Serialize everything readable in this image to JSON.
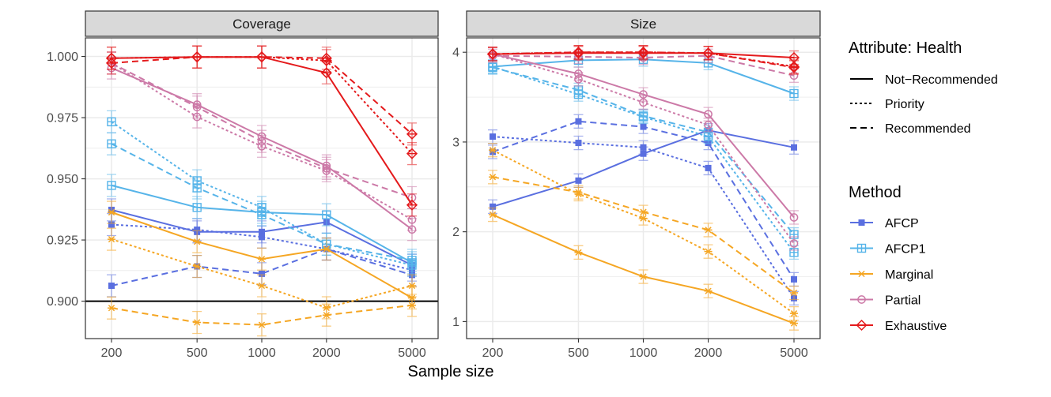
{
  "chart_data": {
    "type": "line",
    "xlabel": "Sample size",
    "x_scale": "log",
    "x": [
      200,
      500,
      1000,
      2000,
      5000
    ],
    "x_tick_labels": [
      "200",
      "500",
      "1000",
      "2000",
      "5000"
    ],
    "grid": true,
    "legend_placement": "right",
    "panels": [
      {
        "strip": "Coverage",
        "ylim": [
          0.8847,
          1.0076
        ],
        "y_ticks": [
          0.9,
          0.925,
          0.95,
          0.975,
          1.0
        ],
        "y_tick_labels": [
          "0.900",
          "0.925",
          "0.950",
          "0.975",
          "1.000"
        ],
        "hline": 0.9,
        "series": [
          {
            "method": "AFCP",
            "line": "Not-Recommended",
            "values": [
              0.9373,
              0.9283,
              0.9283,
              0.9323,
              0.9147
            ]
          },
          {
            "method": "AFCP",
            "line": "Priority",
            "values": [
              0.9313,
              0.9292,
              0.9262,
              0.9213,
              0.9127
            ]
          },
          {
            "method": "AFCP",
            "line": "Recommended",
            "values": [
              0.9063,
              0.9142,
              0.9112,
              0.9213,
              0.9107
            ]
          },
          {
            "method": "AFCP1",
            "line": "Not-Recommended",
            "values": [
              0.9473,
              0.9383,
              0.9363,
              0.9353,
              0.9157
            ]
          },
          {
            "method": "AFCP1",
            "line": "Priority",
            "values": [
              0.9733,
              0.9492,
              0.9383,
              0.9233,
              0.9147
            ]
          },
          {
            "method": "AFCP1",
            "line": "Recommended",
            "values": [
              0.9643,
              0.9463,
              0.9353,
              0.9233,
              0.9167
            ]
          },
          {
            "method": "Marginal",
            "line": "Not-Recommended",
            "values": [
              0.9363,
              0.9243,
              0.9172,
              0.9213,
              0.9013
            ]
          },
          {
            "method": "Marginal",
            "line": "Priority",
            "values": [
              0.9253,
              0.9142,
              0.9063,
              0.8973,
              0.9063
            ]
          },
          {
            "method": "Marginal",
            "line": "Recommended",
            "values": [
              0.8972,
              0.8913,
              0.8903,
              0.8943,
              0.8983
            ]
          },
          {
            "method": "Partial",
            "line": "Not-Recommended",
            "values": [
              0.9953,
              0.9803,
              0.9673,
              0.9553,
              0.9293
            ]
          },
          {
            "method": "Partial",
            "line": "Priority",
            "values": [
              0.9973,
              0.9753,
              0.9633,
              0.9533,
              0.9333
            ]
          },
          {
            "method": "Partial",
            "line": "Recommended",
            "values": [
              0.9973,
              0.9793,
              0.9653,
              0.9543,
              0.9423
            ]
          },
          {
            "method": "Exhaustive",
            "line": "Not-Recommended",
            "values": [
              0.9993,
              0.9998,
              0.9998,
              0.9933,
              0.9393
            ]
          },
          {
            "method": "Exhaustive",
            "line": "Priority",
            "values": [
              0.9993,
              0.9998,
              0.9998,
              0.9983,
              0.9603
            ]
          },
          {
            "method": "Exhaustive",
            "line": "Recommended",
            "values": [
              0.9973,
              0.9998,
              0.9998,
              0.9993,
              0.9683
            ]
          }
        ]
      },
      {
        "strip": "Size",
        "ylim": [
          0.81,
          4.16
        ],
        "y_ticks": [
          1,
          2,
          3,
          4
        ],
        "y_tick_labels": [
          "1",
          "2",
          "3",
          "4"
        ],
        "series": [
          {
            "method": "AFCP",
            "line": "Not-Recommended",
            "values": [
              2.28,
              2.57,
              2.87,
              3.13,
              2.94
            ]
          },
          {
            "method": "AFCP",
            "line": "Priority",
            "values": [
              3.06,
              2.99,
              2.94,
              2.71,
              1.26
            ]
          },
          {
            "method": "AFCP",
            "line": "Recommended",
            "values": [
              2.89,
              3.23,
              3.17,
              2.99,
              1.47
            ]
          },
          {
            "method": "AFCP1",
            "line": "Not-Recommended",
            "values": [
              3.84,
              3.91,
              3.92,
              3.88,
              3.54
            ]
          },
          {
            "method": "AFCP1",
            "line": "Priority",
            "values": [
              3.84,
              3.53,
              3.28,
              3.06,
              1.77
            ]
          },
          {
            "method": "AFCP1",
            "line": "Recommended",
            "values": [
              3.83,
              3.58,
              3.29,
              3.11,
              1.97
            ]
          },
          {
            "method": "Marginal",
            "line": "Not-Recommended",
            "values": [
              2.19,
              1.77,
              1.5,
              1.34,
              0.98
            ]
          },
          {
            "method": "Marginal",
            "line": "Priority",
            "values": [
              2.91,
              2.42,
              2.15,
              1.78,
              1.09
            ]
          },
          {
            "method": "Marginal",
            "line": "Recommended",
            "values": [
              2.61,
              2.44,
              2.22,
              2.02,
              1.32
            ]
          },
          {
            "method": "Partial",
            "line": "Not-Recommended",
            "values": [
              3.98,
              3.76,
              3.53,
              3.31,
              2.16
            ]
          },
          {
            "method": "Partial",
            "line": "Priority",
            "values": [
              3.98,
              3.7,
              3.44,
              3.19,
              1.87
            ]
          },
          {
            "method": "Partial",
            "line": "Recommended",
            "values": [
              3.96,
              3.95,
              3.94,
              3.96,
              3.74
            ]
          },
          {
            "method": "Exhaustive",
            "line": "Not-Recommended",
            "values": [
              3.98,
              3.99,
              3.99,
              3.99,
              3.94
            ]
          },
          {
            "method": "Exhaustive",
            "line": "Priority",
            "values": [
              3.98,
              4.0,
              4.0,
              3.99,
              3.84
            ]
          },
          {
            "method": "Exhaustive",
            "line": "Recommended",
            "values": [
              3.98,
              4.0,
              4.0,
              3.99,
              3.83
            ]
          }
        ]
      }
    ],
    "legend": {
      "line_title": "Attribute: Health",
      "line_items": [
        {
          "label": "Not−Recommended",
          "key": "Not-Recommended"
        },
        {
          "label": "Priority",
          "key": "Priority"
        },
        {
          "label": "Recommended",
          "key": "Recommended"
        }
      ],
      "method_title": "Method",
      "method_items": [
        {
          "label": "AFCP",
          "key": "AFCP"
        },
        {
          "label": "AFCP1",
          "key": "AFCP1"
        },
        {
          "label": "Marginal",
          "key": "Marginal"
        },
        {
          "label": "Partial",
          "key": "Partial"
        },
        {
          "label": "Exhaustive",
          "key": "Exhaustive"
        }
      ]
    },
    "colors": {
      "AFCP": "#5A6FE0",
      "AFCP1": "#56B4E9",
      "Marginal": "#F5A623",
      "Partial": "#CC79A7",
      "Exhaustive": "#E41A1C",
      "strip_fill": "#D9D9D9",
      "grid": "#EBEBEB",
      "panel_border": "#333333",
      "hline": "#000000"
    },
    "markers": {
      "AFCP": "filled-square",
      "AFCP1": "boxed-plus",
      "Marginal": "asterisk",
      "Partial": "open-circle",
      "Exhaustive": "boxed-diamond"
    }
  }
}
